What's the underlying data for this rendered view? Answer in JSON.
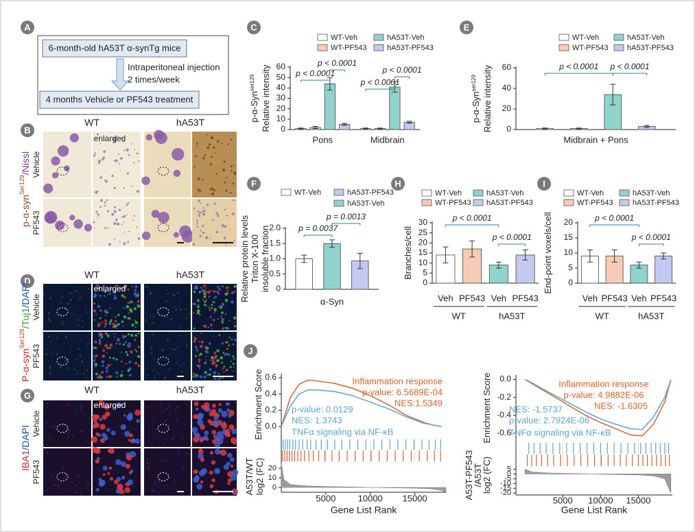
{
  "flow": {
    "label": "A",
    "steps": [
      "6-month-old hA53T α-synTg mice",
      "4 months Vehicle or PF543 treatment"
    ],
    "arrow_text": [
      "Intraperitoneal injection",
      "2 times/week"
    ]
  },
  "image_panels": [
    {
      "label": "B",
      "columns": [
        "WT",
        "hA53T"
      ],
      "enlarged": "enlarged",
      "rows": [
        "Vehicle",
        "PF543"
      ],
      "stain": [
        {
          "text": "p-α-syn",
          "color": "#8b4a2b"
        },
        {
          "text": "Ser129",
          "color": "#8b4a2b",
          "sup": true
        },
        {
          "text": "/Nissl",
          "color": "#7b3f8c"
        }
      ]
    },
    {
      "label": "D",
      "columns": [
        "WT",
        "hA53T"
      ],
      "enlarged": "enlarged",
      "rows": [
        "Vehicle",
        "PF543"
      ],
      "stain": [
        {
          "text": "P-α-syn",
          "color": "#d62728"
        },
        {
          "text": "Ser129",
          "color": "#d62728",
          "sup": true
        },
        {
          "text": "/Tuj1",
          "color": "#2ca02c"
        },
        {
          "text": "/DAPI",
          "color": "#1f4fa0"
        }
      ]
    },
    {
      "label": "G",
      "columns": [
        "WT",
        "hA53T"
      ],
      "enlarged": "enlarged",
      "rows": [
        "Vehicle",
        "PF543"
      ],
      "stain": [
        {
          "text": "IBA1",
          "color": "#d62728"
        },
        {
          "text": "/DAPI",
          "color": "#1f4fa0"
        }
      ]
    }
  ],
  "chart_data": [
    {
      "label": "C",
      "type": "bar",
      "ylabel": [
        "p-α-Syn",
        "Relative intensity"
      ],
      "ylabel_sup": "ser129",
      "categories": [
        "Pons",
        "Midbrain"
      ],
      "series": [
        {
          "name": "WT-Veh",
          "color": "#ffffff",
          "values": [
            1,
            1
          ],
          "errors": [
            0.5,
            0.5
          ]
        },
        {
          "name": "WT-PF543",
          "color": "#f7cbb5",
          "values": [
            2,
            1
          ],
          "errors": [
            1,
            0.5
          ]
        },
        {
          "name": "hA53T-Veh",
          "color": "#8fd3cc",
          "values": [
            44,
            41
          ],
          "errors": [
            6,
            5
          ]
        },
        {
          "name": "hA53T-PF543",
          "color": "#c3c9f0",
          "values": [
            5,
            7
          ],
          "errors": [
            1,
            1
          ]
        }
      ],
      "ylim": [
        0,
        60
      ],
      "yticks": [
        0,
        10,
        20,
        30,
        40,
        50,
        60
      ],
      "annotations": [
        "p < 0.0001",
        "p < 0.0001",
        "p < 0.0001",
        "p < 0.0001"
      ]
    },
    {
      "label": "E",
      "type": "bar",
      "ylabel": [
        "p-α-Syn",
        "Relative intensity"
      ],
      "ylabel_sup": "ser129",
      "categories": [
        "Midbrain + Pons"
      ],
      "series": [
        {
          "name": "WT-Veh",
          "color": "#ffffff",
          "values": [
            1
          ],
          "errors": [
            0.5
          ]
        },
        {
          "name": "WT-PF543",
          "color": "#f7cbb5",
          "values": [
            1
          ],
          "errors": [
            0.5
          ]
        },
        {
          "name": "hA53T-Veh",
          "color": "#8fd3cc",
          "values": [
            34
          ],
          "errors": [
            10
          ]
        },
        {
          "name": "hA53T-PF543",
          "color": "#c3c9f0",
          "values": [
            3
          ],
          "errors": [
            1
          ]
        }
      ],
      "ylim": [
        0,
        60
      ],
      "yticks": [
        0,
        20,
        40,
        60
      ],
      "annotations": [
        "p < 0.0001",
        "p < 0.0001"
      ]
    },
    {
      "label": "F",
      "type": "bar",
      "ylabel": [
        "Relative protein levels",
        "Triton X-100",
        "insoluble fraction"
      ],
      "categories": [
        "α-Syn"
      ],
      "series": [
        {
          "name": "WT-Veh",
          "color": "#ffffff",
          "values": [
            1.0
          ],
          "errors": [
            0.12
          ]
        },
        {
          "name": "hA53T-Veh",
          "color": "#8fd3cc",
          "values": [
            1.5
          ],
          "errors": [
            0.12
          ]
        },
        {
          "name": "hA53T-PF543",
          "color": "#c3c9f0",
          "values": [
            0.93
          ],
          "errors": [
            0.25
          ]
        }
      ],
      "ylim": [
        0,
        2
      ],
      "yticks": [
        0,
        0.5,
        {
          "value": 1,
          "label": "1.0"
        },
        1.5,
        {
          "value": 2,
          "label": "2.0"
        }
      ],
      "annotations": [
        "p = 0.0037",
        "p = 0.0013"
      ]
    },
    {
      "label": "H",
      "type": "bar",
      "ylabel": "Branches/cell",
      "categories": [
        "Veh",
        "PF543",
        "Veh",
        "PF543"
      ],
      "groups": [
        "WT",
        "hA53T"
      ],
      "values": [
        14,
        17,
        9,
        14
      ],
      "errors": [
        4,
        4,
        1.5,
        2.5
      ],
      "colors": [
        "#ffffff",
        "#f7cbb5",
        "#8fd3cc",
        "#c3c9f0"
      ],
      "legend": [
        {
          "name": "WT-Veh",
          "color": "#ffffff"
        },
        {
          "name": "WT-PF543",
          "color": "#f7cbb5"
        },
        {
          "name": "hA53T-Veh",
          "color": "#8fd3cc"
        },
        {
          "name": "hA53T-PF543",
          "color": "#c3c9f0"
        }
      ],
      "ylim": [
        0,
        30
      ],
      "yticks": [
        0,
        5,
        10,
        15,
        20,
        25,
        30
      ],
      "annotations": [
        "p < 0.0001",
        "p < 0.0001"
      ]
    },
    {
      "label": "I",
      "type": "bar",
      "ylabel": "End-point voxels/cell",
      "categories": [
        "Veh",
        "PF543",
        "Veh",
        "PF543"
      ],
      "groups": [
        "WT",
        "hA53T"
      ],
      "values": [
        9,
        9,
        6,
        9
      ],
      "errors": [
        2,
        2,
        1,
        1
      ],
      "colors": [
        "#ffffff",
        "#f7cbb5",
        "#8fd3cc",
        "#c3c9f0"
      ],
      "legend": [
        {
          "name": "WT-Veh",
          "color": "#ffffff"
        },
        {
          "name": "WT-PF543",
          "color": "#f7cbb5"
        },
        {
          "name": "hA53T-Veh",
          "color": "#8fd3cc"
        },
        {
          "name": "hA53T-PF543",
          "color": "#c3c9f0"
        }
      ],
      "ylim": [
        0,
        20
      ],
      "yticks": [
        0,
        5,
        10,
        15,
        20
      ],
      "annotations": [
        "p < 0.0001",
        "p < 0.0001"
      ]
    },
    {
      "label": "J",
      "type": "gsea",
      "ylabel": "Enrichment Score",
      "fc_ylabel": [
        "A53T/WT",
        "log2 (FC)"
      ],
      "xlabel": "Gene List Rank",
      "xlim": [
        0,
        18500
      ],
      "xticks": [
        5000,
        10000,
        15000
      ],
      "ylim": [
        -0.15,
        0.65
      ],
      "yticks": [
        {
          "value": 0,
          "label": "0.0"
        },
        0.2,
        0.4,
        0.6
      ],
      "x": [
        0,
        1000,
        2000,
        3000,
        4000,
        6000,
        8000,
        10000,
        12000,
        14000,
        16000,
        17000,
        18000
      ],
      "series": [
        {
          "name": "Inflammation response",
          "color": "#d9622b",
          "values": [
            0,
            0.35,
            0.52,
            0.57,
            0.56,
            0.53,
            0.47,
            0.38,
            0.27,
            0.14,
            0.05,
            0.02,
            0
          ],
          "stats": [
            "p-value: 6.5689E-04",
            "NES:1.5349"
          ],
          "hits": [
            150,
            400,
            650,
            900,
            1200,
            1500,
            1850,
            2200,
            2600,
            3100,
            3600,
            4200,
            4900,
            5700,
            6500,
            7400,
            8300,
            9200,
            10100,
            11000,
            11900,
            12800,
            13700,
            14600,
            15500,
            16400,
            17200,
            17900
          ]
        },
        {
          "name": "TNFα signaling via NF-κB",
          "color": "#5ba3d0",
          "values": [
            0,
            0.25,
            0.4,
            0.45,
            0.45,
            0.43,
            0.38,
            0.3,
            0.22,
            0.12,
            0.04,
            0.02,
            0
          ],
          "stats": [
            "p-value: 0.0129",
            "NES: 1.3743"
          ],
          "hits": [
            200,
            450,
            700,
            950,
            1300,
            1600,
            2000,
            2400,
            2900,
            3300,
            3900,
            4500,
            5200,
            6000,
            6800,
            7700,
            8600,
            9500,
            10400,
            11300,
            12200,
            13100,
            14000,
            14900,
            15800,
            16600,
            17300,
            17900
          ]
        }
      ],
      "fc_ylim": [
        -5,
        25
      ],
      "fc_yticks": [
        0,
        10,
        20
      ],
      "fc_x": [
        0,
        300,
        1000,
        3000,
        6000,
        9000,
        12000,
        15000,
        17000,
        18000,
        18500
      ],
      "fc_values": [
        25,
        8,
        3,
        1.5,
        0.8,
        0.2,
        -0.3,
        -0.8,
        -1.5,
        -3,
        -5
      ]
    },
    {
      "type": "gsea",
      "ylabel": "Enrichment Score",
      "fc_ylabel": [
        "A53T-PF543",
        "/A53T",
        "log2 (FC)"
      ],
      "xlabel": "Gene List Rank",
      "xlim": [
        -1200,
        19500
      ],
      "xticks": [
        5000,
        10000,
        15000
      ],
      "ylim": [
        -0.7,
        0.05
      ],
      "yticks": [
        {
          "value": 0,
          "label": "0.0"
        },
        -0.2,
        -0.4,
        -0.6
      ],
      "x": [
        0,
        1000,
        2000,
        4000,
        6000,
        8000,
        10000,
        12000,
        14000,
        15500,
        17000,
        18500,
        19300
      ],
      "series": [
        {
          "name": "Inflammation response",
          "color": "#d9622b",
          "values": [
            0,
            -0.05,
            -0.1,
            -0.2,
            -0.3,
            -0.4,
            -0.48,
            -0.55,
            -0.62,
            -0.63,
            -0.5,
            -0.25,
            0
          ],
          "stats": [
            "p-value: 4.9882E-06",
            "NES: -1.6305"
          ],
          "hits": [
            300,
            900,
            1500,
            2200,
            3000,
            3800,
            4700,
            5600,
            6500,
            7400,
            8300,
            9200,
            10100,
            11000,
            11800,
            12600,
            13400,
            14200,
            15000,
            15600,
            16200,
            16800,
            17400,
            18000,
            18600,
            19100
          ]
        },
        {
          "name": "TNFα signaling via NF-κB",
          "color": "#5ba3d0",
          "values": [
            0,
            -0.04,
            -0.09,
            -0.18,
            -0.27,
            -0.36,
            -0.44,
            -0.5,
            -0.55,
            -0.56,
            -0.42,
            -0.2,
            0
          ],
          "stats": [
            "NES: -1.5737",
            "p-value: 2.7924E-06"
          ],
          "hits": [
            500,
            1200,
            2000,
            2800,
            3700,
            4600,
            5500,
            6400,
            7300,
            8200,
            9100,
            10000,
            10900,
            11800,
            12700,
            13600,
            14500,
            15300,
            16000,
            16700,
            17300,
            17900,
            18500,
            19000
          ]
        }
      ],
      "fc_ylim": [
        -22,
        6
      ],
      "fc_yticks": [
        5,
        0,
        -5,
        -10,
        -15,
        -20
      ],
      "fc_x": [
        0,
        300,
        1000,
        3000,
        6000,
        9000,
        12000,
        15000,
        17000,
        18500,
        19300
      ],
      "fc_values": [
        5,
        4,
        2,
        1,
        0.5,
        0,
        -0.5,
        -1,
        -2,
        -5,
        -20
      ]
    }
  ]
}
